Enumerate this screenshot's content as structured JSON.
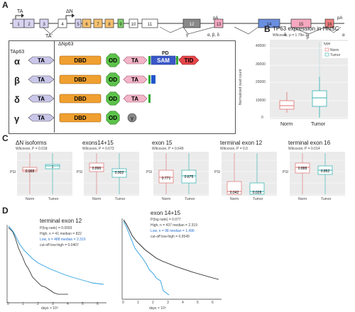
{
  "panels": {
    "a": "A",
    "b": "B",
    "c": "C",
    "d": "D"
  },
  "gene": {
    "ta_label": "TA",
    "dn_label": "ΔN",
    "ta_prime": "TA'",
    "exons": [
      "1",
      "2",
      "3",
      "4",
      "5",
      "6",
      "7",
      "8",
      "9",
      "10",
      "11",
      "12",
      "13",
      "14",
      "15",
      "16"
    ],
    "pa_labels": [
      "pA",
      "pA"
    ],
    "end_labels": [
      "γ",
      "α, β, δ",
      "δ",
      "β",
      "α"
    ]
  },
  "domains": {
    "tap63_label": "TAp63",
    "dnp63_label": "ΔNp63",
    "pd_label": "PD",
    "isoforms": [
      {
        "greek": "α",
        "parts": [
          "TA",
          "DBD",
          "OD",
          "TA",
          "SAM",
          "TID"
        ]
      },
      {
        "greek": "β",
        "parts": [
          "TA",
          "DBD",
          "OD",
          "TA"
        ]
      },
      {
        "greek": "δ",
        "parts": [
          "TA",
          "DBD",
          "OD",
          "TA"
        ]
      },
      {
        "greek": "γ",
        "parts": [
          "TA",
          "DBD",
          "OD",
          "γ"
        ]
      }
    ],
    "colors": {
      "ta": "#c9c6ea",
      "dbd": "#f0a030",
      "od": "#5cc24a",
      "ta2": "#f3b5c8",
      "sam": "#3a58c8",
      "tid": "#e6464a",
      "gamma": "#888888",
      "green_bar": "#33aa33",
      "blue_bar": "#2255cc"
    }
  },
  "panel_b": {
    "title": "TP63 expression in HNSC",
    "subtitle": "Wilcoxon, p = 1.79e-10",
    "ylabel": "Normalized read count",
    "legend_title": "type",
    "legend": [
      "Norm",
      "Tumor"
    ],
    "xlabels": [
      "Norm",
      "Tumor"
    ],
    "yticks": [
      "0",
      "10000",
      "20000",
      "30000",
      "40000"
    ]
  },
  "panel_c": {
    "ylabel": "PSI",
    "plots": [
      {
        "title": "ΔN isoforms",
        "subtitle": "Wilcoxon, P = 0.018",
        "vals": [
          "0.968",
          "1"
        ]
      },
      {
        "title": "exons14+15",
        "subtitle": "Wilcoxon, P = 0.673",
        "vals": [
          "0.896",
          "0.902"
        ]
      },
      {
        "title": "exon 15",
        "subtitle": "Wilcoxon, P = 0.649",
        "vals": [
          "0.771",
          "0.675"
        ]
      },
      {
        "title": "terminal exon 12",
        "subtitle": "Wilcoxon, P = 0.0",
        "vals": [
          "0.042",
          "0.028"
        ]
      },
      {
        "title": "terminal exon 16",
        "subtitle": "Wilcoxon, P = 0.014",
        "vals": [
          "0.888",
          "0.852"
        ]
      }
    ],
    "xlabels": [
      "Norm",
      "Tumor"
    ]
  },
  "panel_d": {
    "left": {
      "title": "terminal exon 12",
      "stats": [
        "P(log rank) = 0.0093",
        "High, n = 41 median = 822",
        "Low, n = 488 median = 2.310",
        "cut-off low-high = 0.0407"
      ],
      "xlabel": "days × 10³",
      "xticks": [
        "0",
        "1",
        "2",
        "3",
        "4",
        "5",
        "6"
      ]
    },
    "right": {
      "title": "exon 14+15",
      "stats": [
        "P(log rank) = 0.077",
        "High, n = 437 median = 2.319",
        "Low, n = 98 median = 1.496",
        "cut-off low-high = 0.9549"
      ],
      "xlabel": "days × 10³",
      "xticks": [
        "0",
        "1",
        "2",
        "3",
        "4",
        "5",
        "6"
      ]
    },
    "yticks": [
      "0",
      "0.2",
      "0.4",
      "0.6",
      "0.8",
      "1"
    ]
  }
}
